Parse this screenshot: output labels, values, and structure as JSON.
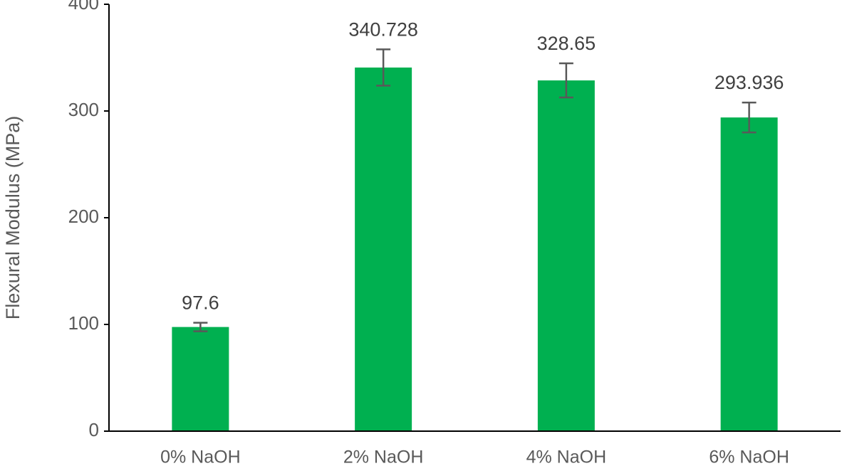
{
  "chart_data": {
    "type": "bar",
    "y_label": "Flexural Modulus (MPa)",
    "categories": [
      "0% NaOH",
      "2% NaOH",
      "4% NaOH",
      "6% NaOH"
    ],
    "values": [
      97.6,
      340.728,
      328.65,
      293.936
    ],
    "errors": [
      4,
      17,
      16,
      14
    ],
    "color": "#00b050",
    "ylim": [
      0,
      400
    ],
    "yticks": [
      0,
      100,
      200,
      300,
      400
    ],
    "grid": false
  }
}
